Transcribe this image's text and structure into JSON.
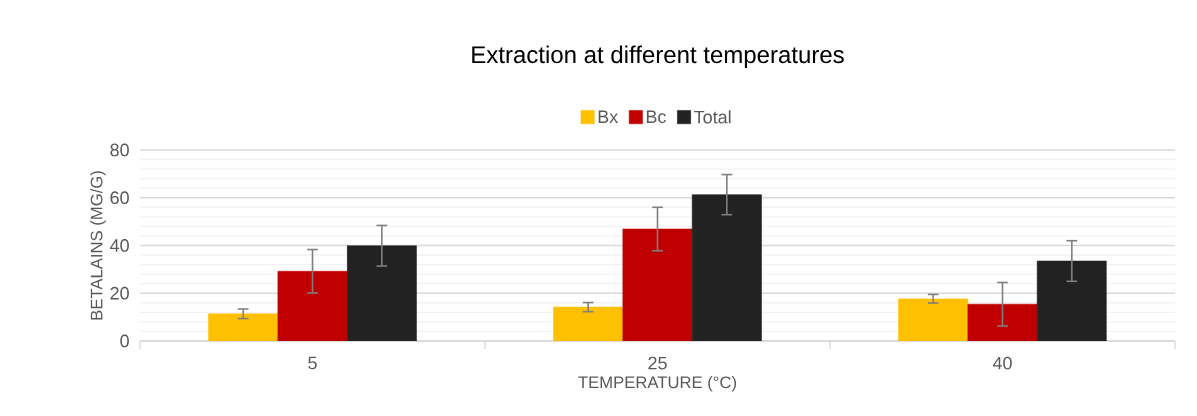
{
  "chart_data": {
    "type": "bar",
    "title": "Extraction at different temperatures",
    "xlabel": "TEMPERATURE (°C)",
    "ylabel": "BETALAINS (MG/G)",
    "categories": [
      "5",
      "25",
      "40"
    ],
    "series": [
      {
        "name": "Bx",
        "color": "#ffc000",
        "values": [
          11.4,
          14.2,
          17.7
        ],
        "errors": [
          2,
          1.9,
          1.8
        ]
      },
      {
        "name": "Bc",
        "color": "#c00000",
        "values": [
          29.2,
          46.9,
          15.4
        ],
        "errors": [
          9.1,
          9.1,
          9.1
        ]
      },
      {
        "name": "Total",
        "color": "#222222",
        "values": [
          39.9,
          61.3,
          33.5
        ],
        "errors": [
          8.5,
          8.4,
          8.5
        ]
      }
    ],
    "ylim": [
      0,
      80
    ],
    "yticks": [
      0,
      20,
      40,
      60,
      80
    ],
    "grid": "y",
    "legend": "top"
  }
}
